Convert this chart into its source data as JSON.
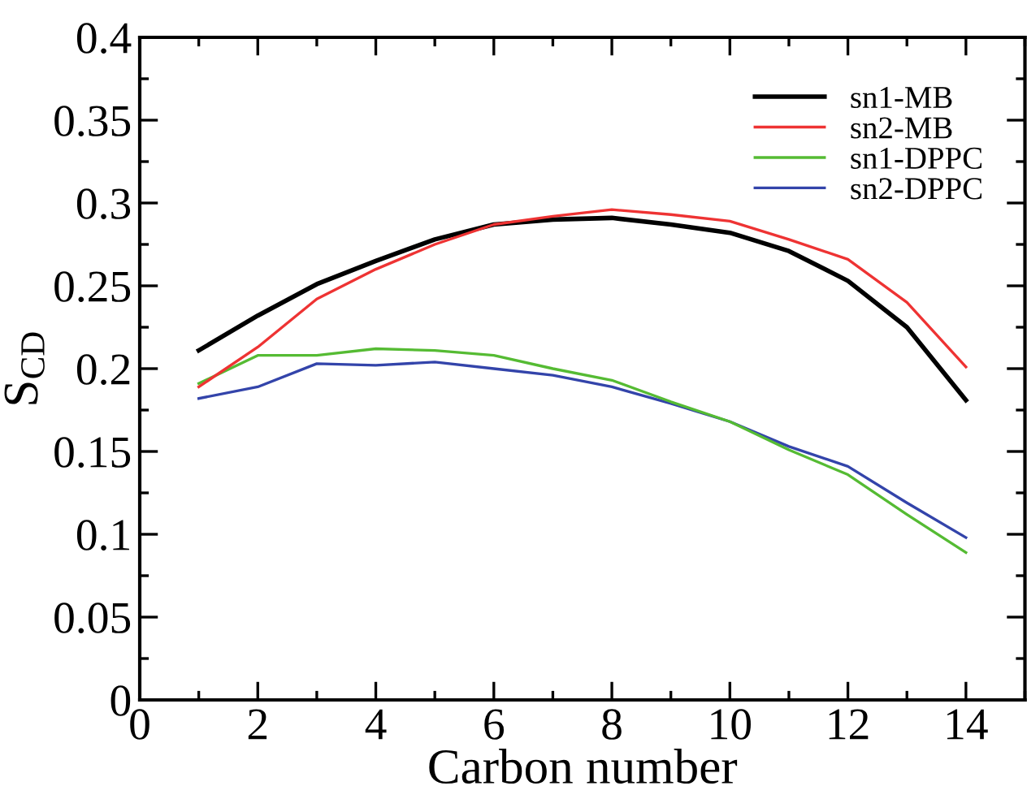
{
  "chart_data": {
    "type": "line",
    "xlabel": "Carbon number",
    "ylabel": "S$_{CD}$",
    "x": [
      1,
      2,
      3,
      4,
      5,
      6,
      7,
      8,
      9,
      10,
      11,
      12,
      13,
      14
    ],
    "series": [
      {
        "name": "sn1-MB",
        "color": "#000000",
        "values": [
          0.211,
          0.232,
          0.251,
          0.265,
          0.278,
          0.287,
          0.29,
          0.291,
          0.287,
          0.282,
          0.271,
          0.253,
          0.225,
          0.181
        ]
      },
      {
        "name": "sn2-MB",
        "color": "#ee3333",
        "values": [
          0.189,
          0.213,
          0.242,
          0.26,
          0.275,
          0.287,
          0.292,
          0.296,
          0.293,
          0.289,
          0.278,
          0.266,
          0.24,
          0.201
        ]
      },
      {
        "name": "sn1-DPPC",
        "color": "#55bb33",
        "values": [
          0.191,
          0.208,
          0.208,
          0.212,
          0.211,
          0.208,
          0.2,
          0.193,
          0.18,
          0.168,
          0.151,
          0.136,
          0.112,
          0.089
        ]
      },
      {
        "name": "sn2-DPPC",
        "color": "#3344aa",
        "values": [
          0.182,
          0.189,
          0.203,
          0.202,
          0.204,
          0.2,
          0.196,
          0.189,
          0.179,
          0.168,
          0.153,
          0.141,
          0.119,
          0.098
        ]
      }
    ],
    "xlim": [
      0,
      15
    ],
    "xticks": [
      0,
      2,
      4,
      6,
      8,
      10,
      12,
      14
    ],
    "ylim": [
      0,
      0.4
    ],
    "yticks": [
      {
        "value": 0,
        "label": "0"
      },
      0.05,
      0.1,
      0.15,
      0.2,
      0.25,
      0.3,
      0.35,
      0.4
    ],
    "grid": false,
    "legend": "top right",
    "marker": "none",
    "line_style": "solid"
  }
}
